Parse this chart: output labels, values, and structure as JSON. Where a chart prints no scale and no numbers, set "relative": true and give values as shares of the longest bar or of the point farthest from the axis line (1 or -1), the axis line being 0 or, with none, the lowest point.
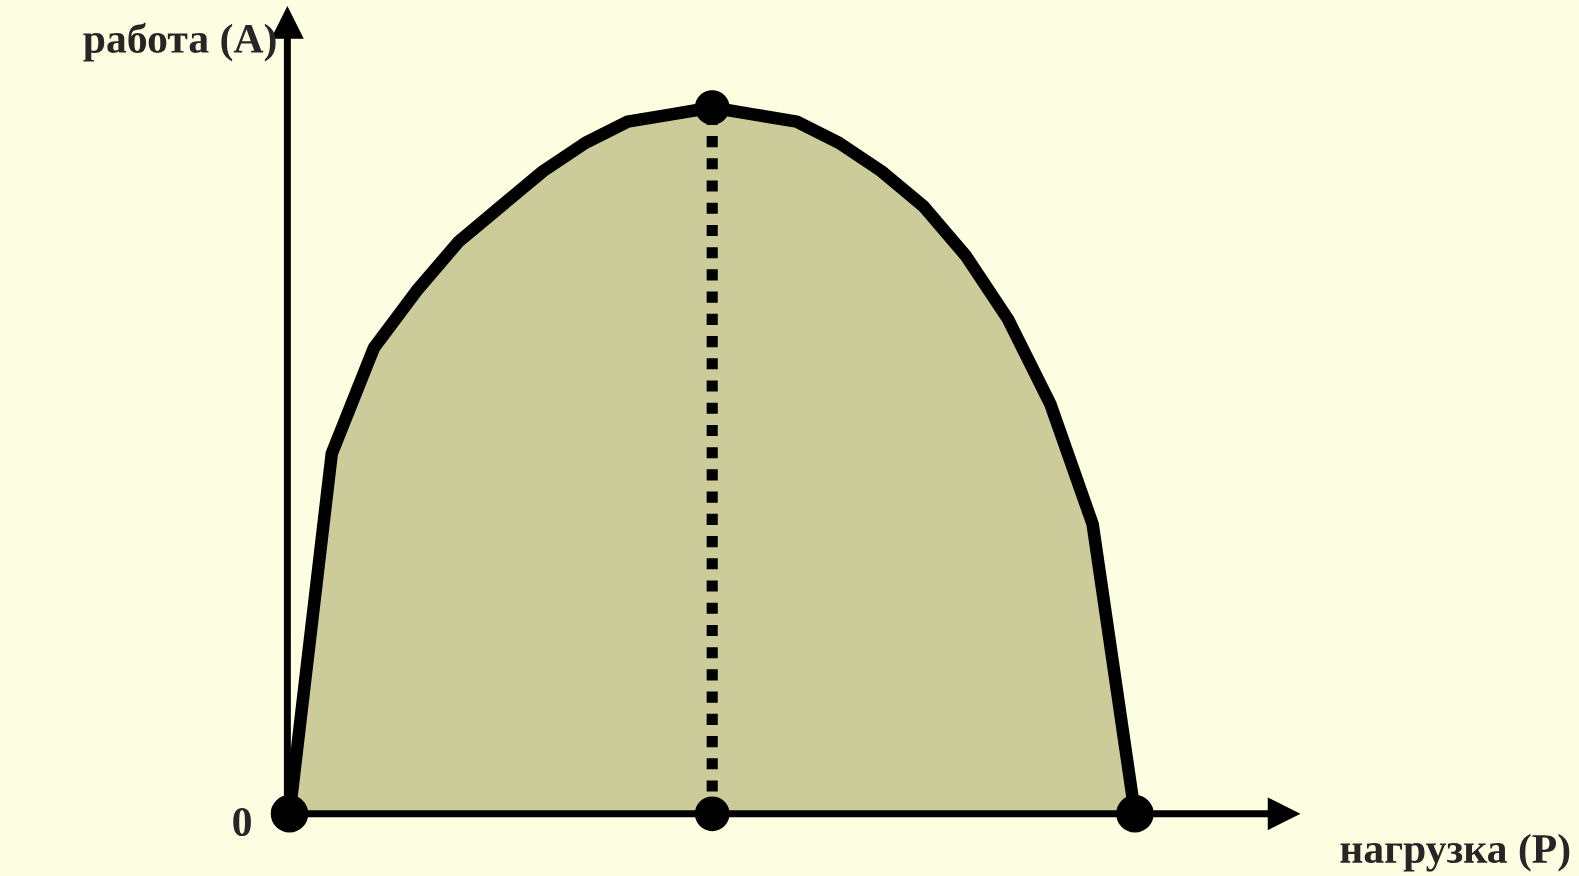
{
  "chart_data": {
    "type": "area",
    "relative": true,
    "xlabel": "нагрузка (P)",
    "ylabel": "работа (A)",
    "annotations": [
      "0"
    ],
    "categories": [
      null,
      null,
      null,
      null,
      null,
      null,
      null,
      null,
      null,
      null,
      null,
      null,
      null,
      null,
      null,
      null,
      null,
      null,
      null,
      null,
      null
    ],
    "series": [
      {
        "color": "#cbcc99",
        "values": [
          0,
          0.51,
          0.66,
          0.74,
          0.81,
          0.86,
          0.91,
          0.95,
          0.98,
          0.99,
          1,
          0.99,
          0.98,
          0.95,
          0.91,
          0.86,
          0.79,
          0.7,
          0.58,
          0.41,
          0
        ]
      }
    ]
  }
}
